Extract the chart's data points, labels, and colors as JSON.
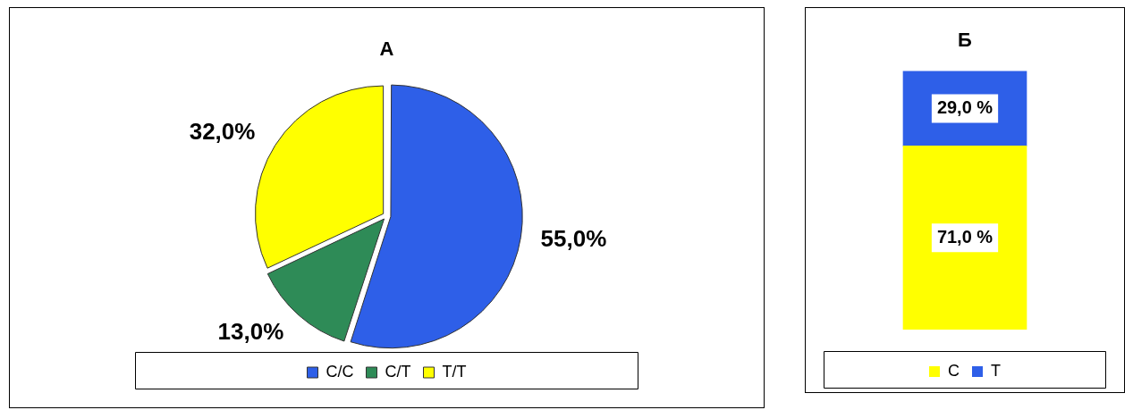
{
  "chart_data": [
    {
      "type": "pie",
      "title": "А",
      "categories": [
        "C/C",
        "C/T",
        "T/T"
      ],
      "values": [
        55,
        13,
        32
      ],
      "colors": [
        "#2e5fe8",
        "#2e8b57",
        "#ffff00"
      ],
      "value_labels": [
        "55,0%",
        "13,0%",
        "32,0%"
      ],
      "legend": "bottom"
    },
    {
      "type": "bar",
      "title": "Б",
      "categories": [
        null
      ],
      "stacked": true,
      "legend": "bottom",
      "series": [
        {
          "name": "C",
          "color": "#ffff00",
          "values": [
            71
          ],
          "value_labels": [
            "71,0 %"
          ]
        },
        {
          "name": "T",
          "color": "#2e5fe8",
          "values": [
            29
          ],
          "value_labels": [
            "29,0 %"
          ]
        }
      ]
    }
  ]
}
